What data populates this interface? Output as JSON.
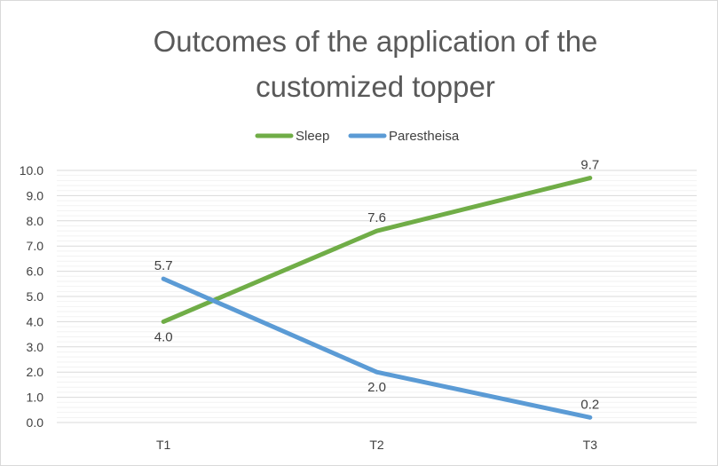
{
  "chart_data": {
    "type": "line",
    "title_lines": [
      "Outcomes of the application of the",
      "customized topper"
    ],
    "categories": [
      "T1",
      "T2",
      "T3"
    ],
    "series": [
      {
        "name": "Sleep",
        "values": [
          4.0,
          7.6,
          9.7
        ],
        "color": "#70ad47"
      },
      {
        "name": "Parestheisa",
        "values": [
          5.7,
          2.0,
          0.2
        ],
        "color": "#5b9bd5"
      }
    ],
    "ylim": [
      0,
      10
    ],
    "ytick_labels": [
      "0.0",
      "1.0",
      "2.0",
      "3.0",
      "4.0",
      "5.0",
      "6.0",
      "7.0",
      "8.0",
      "9.0",
      "10.0"
    ],
    "data_labels": {
      "Sleep": [
        "4.0",
        "7.6",
        "9.7"
      ],
      "Parestheisa": [
        "5.7",
        "2.0",
        "0.2"
      ]
    },
    "legend_position": "top",
    "grid": true,
    "minor_grid": true
  }
}
